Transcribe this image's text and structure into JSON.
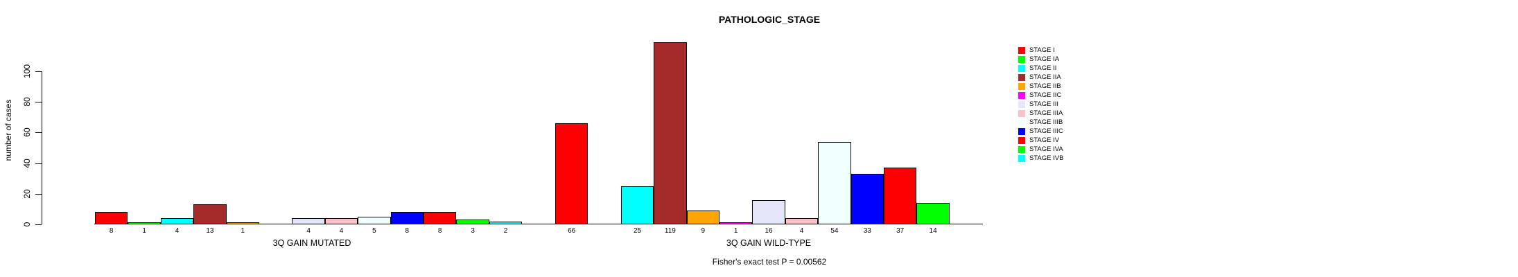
{
  "chart_data": {
    "type": "bar",
    "title": "PATHOLOGIC_STAGE",
    "ylabel": "number of cases",
    "ylim": [
      0,
      100
    ],
    "yticks": [
      0,
      20,
      40,
      60,
      80,
      100
    ],
    "grid": false,
    "legend_position": "right",
    "value_labels_under_bars": true,
    "zero_value_bars_hidden": true,
    "categories": [
      "STAGE I",
      "STAGE IA",
      "STAGE II",
      "STAGE IIA",
      "STAGE IIB",
      "STAGE IIC",
      "STAGE III",
      "STAGE IIIA",
      "STAGE IIIB",
      "STAGE IIIC",
      "STAGE IV",
      "STAGE IVA",
      "STAGE IVB"
    ],
    "colors": [
      "#FF0000",
      "#00FF00",
      "#00FFFF",
      "#A52A2A",
      "#FFA500",
      "#FF00FF",
      "#E6E6FA",
      "#FFC0CB",
      "#F0FFFF",
      "#0000FF",
      "#FF0000",
      "#00FF00",
      "#00FFFF"
    ],
    "series": [
      {
        "name": "3Q GAIN MUTATED",
        "values": [
          8,
          1,
          4,
          13,
          1,
          0,
          4,
          4,
          5,
          8,
          8,
          3,
          2
        ]
      },
      {
        "name": "3Q GAIN WILD-TYPE",
        "values": [
          66,
          0,
          25,
          119,
          9,
          1,
          16,
          4,
          54,
          33,
          37,
          14,
          0
        ]
      }
    ],
    "footnote": "Fisher's exact test P = 0.00562"
  }
}
